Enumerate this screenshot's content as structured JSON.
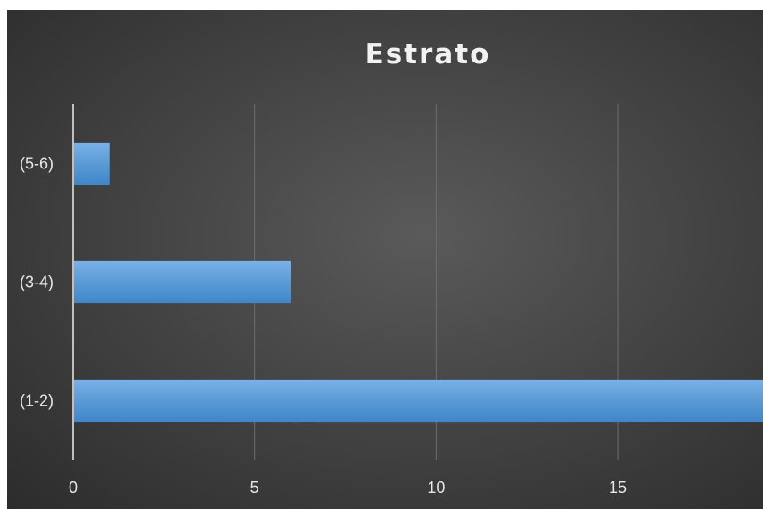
{
  "chart_data": {
    "type": "bar",
    "orientation": "horizontal",
    "title": "Estrato",
    "categories": [
      "(1-2)",
      "(3-4)",
      "(5-6)"
    ],
    "values": [
      19,
      6,
      1
    ],
    "xticks": [
      "0",
      "5",
      "10",
      "15"
    ],
    "xlim": [
      0,
      19
    ],
    "xlabel": "",
    "ylabel": "",
    "grid": true,
    "legend": "none",
    "bar_color": "#5b9bd5"
  }
}
